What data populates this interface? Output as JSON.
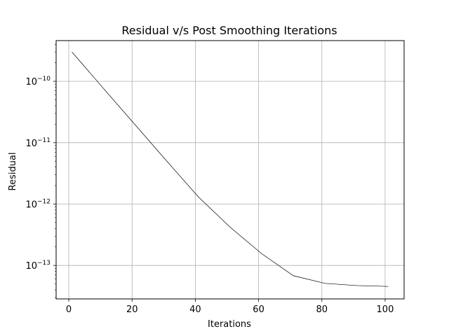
{
  "chart_data": {
    "type": "line",
    "title": "Residual v/s Post Smoothing Iterations",
    "xlabel": "Iterations",
    "ylabel": "Residual",
    "y_scale": "log",
    "grid": true,
    "xlim": [
      -4,
      106
    ],
    "ylim": [
      2.85e-14,
      4.6e-10
    ],
    "x_ticks": [
      0,
      20,
      40,
      60,
      80,
      100
    ],
    "x_tick_labels": [
      "0",
      "20",
      "40",
      "60",
      "80",
      "100"
    ],
    "y_ticks": [
      1e-10,
      1e-11,
      1e-12,
      1e-13
    ],
    "y_tick_labels": [
      {
        "base": "10",
        "exp": "−10"
      },
      {
        "base": "10",
        "exp": "−11"
      },
      {
        "base": "10",
        "exp": "−12"
      },
      {
        "base": "10",
        "exp": "−13"
      }
    ],
    "series": [
      {
        "color": "#000000",
        "x": [
          1,
          11,
          21,
          31,
          41,
          51,
          61,
          71,
          81,
          91,
          101
        ],
        "y": [
          3e-10,
          7.6e-11,
          1.95e-11,
          5e-12,
          1.3e-12,
          4.2e-13,
          1.55e-13,
          6.8e-14,
          5.1e-14,
          4.7e-14,
          4.55e-14
        ]
      }
    ]
  }
}
